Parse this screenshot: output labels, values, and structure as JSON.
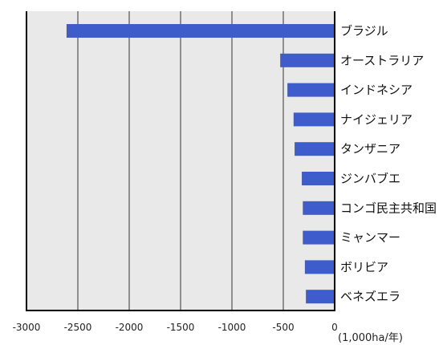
{
  "chart_data": {
    "type": "bar",
    "orientation": "horizontal",
    "categories": [
      "ブラジル",
      "オーストラリア",
      "インドネシア",
      "ナイジェリア",
      "タンザニア",
      "ジンバブエ",
      "コンゴ民主共和国",
      "ミャンマー",
      "ボリビア",
      "ベネズエラ"
    ],
    "values": [
      -2610,
      -530,
      -460,
      -400,
      -390,
      -320,
      -310,
      -310,
      -290,
      -280
    ],
    "unit_label": "(1,000ha/年)",
    "x_ticks": [
      "-3000",
      "-2500",
      "-2000",
      "-1500",
      "-1000",
      "-500",
      "0"
    ],
    "xlim": [
      -3000,
      0
    ],
    "grid": true,
    "bar_color": "#3f5ccc",
    "background_color": "#e9e9e9"
  }
}
